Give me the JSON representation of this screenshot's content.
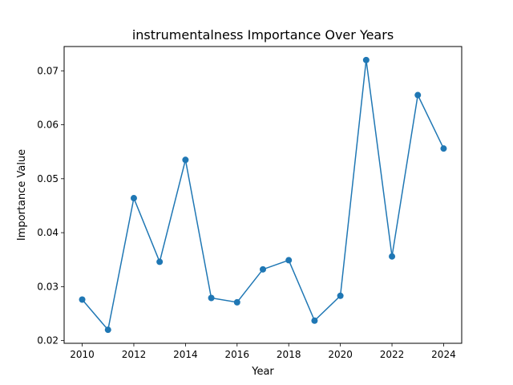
{
  "chart_data": {
    "type": "line",
    "title": "instrumentalness Importance Over Years",
    "xlabel": "Year",
    "ylabel": "Importance Value",
    "x": [
      2010,
      2011,
      2012,
      2013,
      2014,
      2015,
      2016,
      2017,
      2018,
      2019,
      2020,
      2021,
      2022,
      2023,
      2024
    ],
    "series": [
      {
        "values": [
          0.0276,
          0.022,
          0.0464,
          0.0346,
          0.0535,
          0.0279,
          0.0271,
          0.0332,
          0.0349,
          0.0237,
          0.0283,
          0.072,
          0.0356,
          0.0655,
          0.0556
        ],
        "color": "#1f77b4"
      }
    ],
    "xlim": [
      2009.3,
      2024.7
    ],
    "ylim": [
      0.0195,
      0.0745
    ],
    "xticks": [
      2010,
      2012,
      2014,
      2016,
      2018,
      2020,
      2022,
      2024
    ],
    "yticks": [
      0.02,
      0.03,
      0.04,
      0.05,
      0.06,
      0.07
    ],
    "ytick_labels": [
      "0.02",
      "0.03",
      "0.04",
      "0.05",
      "0.06",
      "0.07"
    ],
    "grid": false,
    "markers": true
  }
}
